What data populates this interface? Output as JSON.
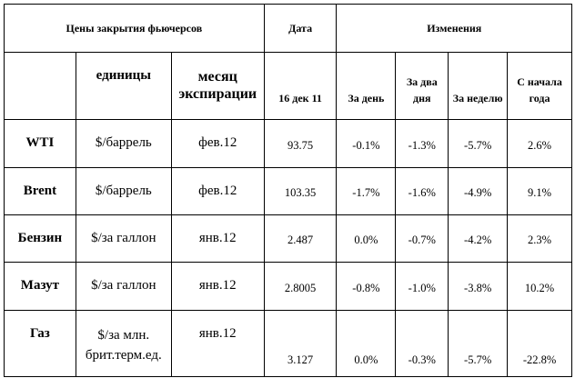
{
  "header": {
    "title": "Цены закрытия фьючерсов",
    "date_label": "Дата",
    "changes_label": "Изменения",
    "units_label": "единицы",
    "expiry_label": "месяц экспирации",
    "date_value": "16 дек 11",
    "col_day": "За день",
    "col_two_days": "За два дня",
    "col_week": "За неделю",
    "col_ytd": "С начала года"
  },
  "rows": [
    {
      "name": "WTI",
      "unit": "$/баррель",
      "month": "фев.12",
      "price": "93.75",
      "day": "-0.1%",
      "two_days": "-1.3%",
      "week": "-5.7%",
      "ytd": "2.6%"
    },
    {
      "name": "Brent",
      "unit": "$/баррель",
      "month": "фев.12",
      "price": "103.35",
      "day": "-1.7%",
      "two_days": "-1.6%",
      "week": "-4.9%",
      "ytd": "9.1%"
    },
    {
      "name": "Бензин",
      "unit": "$/за галлон",
      "month": "янв.12",
      "price": "2.487",
      "day": "0.0%",
      "two_days": "-0.7%",
      "week": "-4.2%",
      "ytd": "2.3%"
    },
    {
      "name": "Мазут",
      "unit": "$/за галлон",
      "month": "янв.12",
      "price": "2.8005",
      "day": "-0.8%",
      "two_days": "-1.0%",
      "week": "-3.8%",
      "ytd": "10.2%"
    },
    {
      "name": "Газ",
      "unit": "$/за млн. брит.терм.ед.",
      "month": "янв.12",
      "price": "3.127",
      "day": "0.0%",
      "two_days": "-0.3%",
      "week": "-5.7%",
      "ytd": "-22.8%"
    }
  ]
}
